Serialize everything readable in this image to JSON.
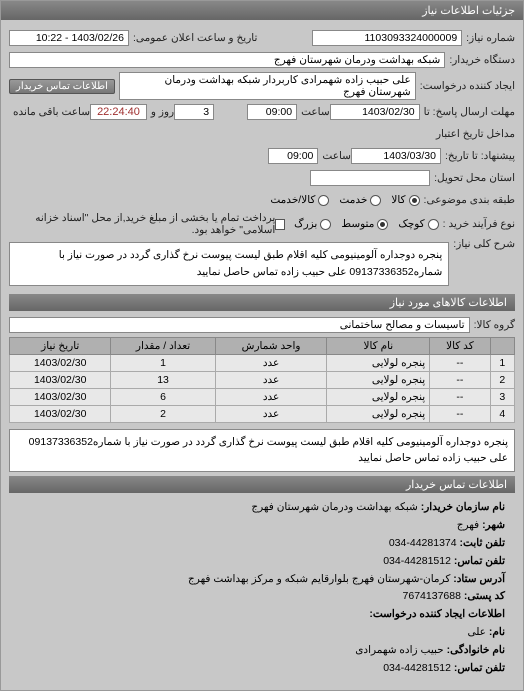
{
  "header": {
    "title": "جزئیات اطلاعات نیاز"
  },
  "labels": {
    "request_no": "شماره نیاز:",
    "public_date": "تاریخ و ساعت اعلان عمومی:",
    "buyer_device": "دستگاه خریدار:",
    "request_creator": "ایجاد کننده درخواست:",
    "contact_btn": "اطلاعات تماس خریدار",
    "deadline_send": "مهلت ارسال پاسخ: تا",
    "hour": "ساعت",
    "valid_from": "مداخل تاریخ اعتبار",
    "valid_to": "پیشنهاد: تا تاریخ:",
    "delivery_place": "استان محل تحویل:",
    "package_type": "طبقه بندی موضوعی:",
    "ar_goods": "کالا",
    "ar_service": "خدمت",
    "ar_both": "کالا/خدمت",
    "delivery_method": "نوع فرآیند خرید :",
    "rm_low": "کوچک",
    "rm_mid": "متوسط",
    "rm_high": "بزرگ",
    "pay_note_chk": "پرداخت تمام یا بخشی از مبلغ خرید,از محل \"اسناد خزانه اسلامی\" خواهد بود.",
    "desc_label": "شرح کلی نیاز:",
    "goods_section": "اطلاعات کالاهای مورد نیاز",
    "goods_group": "گروه کالا:",
    "remaining": "ساعت باقی مانده",
    "and": "روز و",
    "contact_section": "اطلاعات تماس خریدار",
    "c_org": "نام سازمان خریدار:",
    "c_city": "شهر:",
    "c_tel": "تلفن ثابت:",
    "c_fax": "دورنگار:",
    "c_fax_contact": "تلفن تماس:",
    "c_addr": "آدرس ستاد:",
    "c_post": "کد پستی:",
    "c_creator": "اطلاعات ایجاد کننده درخواست:",
    "c_name": "نام:",
    "c_family": "نام خانوادگی:",
    "c_phone": "تلفن تماس:"
  },
  "vals": {
    "request_no": "1103093324000009",
    "public_date": "1403/02/26 - 10:22",
    "buyer_device": "شبکه بهداشت ودرمان شهرستان فهرج",
    "request_creator": "علی حبیب زاده شهمرادی کاربردار شبکه بهداشت ودرمان شهرستان فهرج",
    "deadline_date": "1403/02/30",
    "deadline_time": "09:00",
    "valid_date": "1403/03/30",
    "valid_time": "09:00",
    "delivery_place": "",
    "days": "3",
    "countdown": "22:24:40",
    "desc": "پنجره دوجداره آلومینیومی کلیه اقلام طبق لیست پیوست نرخ گذاری گردد در صورت نیاز با شماره09137336352 علی حبیب زاده تماس حاصل نمایید",
    "goods_group": "تاسیسات و مصالح ساختمانی",
    "c_org": "شبکه بهداشت ودرمان شهرستان فهرج",
    "c_city": "فهرج",
    "c_tel": "44281374-034",
    "c_fax": "44281512-034",
    "c_addr": "کرمان-شهرستان فهرج بلوارقایم شبکه و مرکز بهداشت فهرج",
    "c_post": "7674137688",
    "c_name": "علی",
    "c_family": "حبیب زاده شهمرادی",
    "c_phone": "44281512-034"
  },
  "table": {
    "cols": [
      "",
      "کد کالا",
      "نام کالا",
      "واحد شمارش",
      "تعداد / مقدار",
      "تاریخ نیاز"
    ],
    "rows": [
      [
        "1",
        "--",
        "پنجره لولایی",
        "عدد",
        "1",
        "1403/02/30"
      ],
      [
        "2",
        "--",
        "پنجره لولایی",
        "عدد",
        "13",
        "1403/02/30"
      ],
      [
        "3",
        "--",
        "پنجره لولایی",
        "عدد",
        "6",
        "1403/02/30"
      ],
      [
        "4",
        "--",
        "پنجره لولایی",
        "عدد",
        "2",
        "1403/02/30"
      ]
    ]
  }
}
